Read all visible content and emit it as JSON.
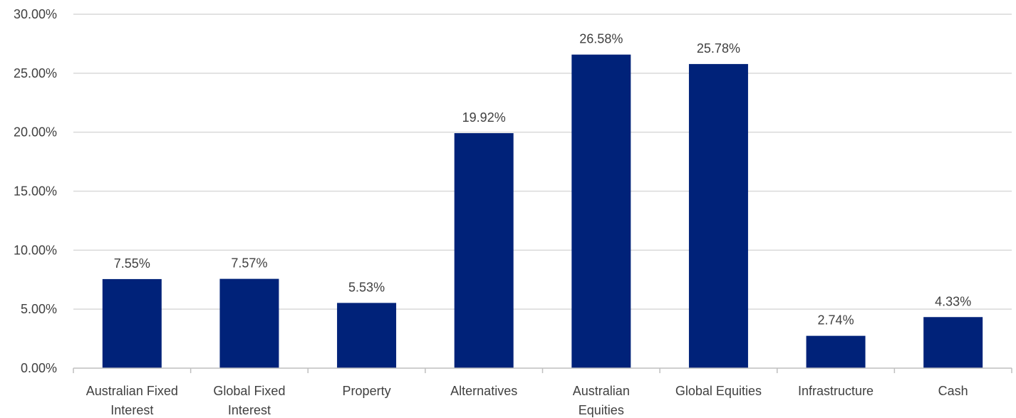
{
  "chart_data": {
    "type": "bar",
    "categories": [
      [
        "Australian Fixed",
        "Interest"
      ],
      [
        "Global Fixed",
        "Interest"
      ],
      [
        "Property"
      ],
      [
        "Alternatives"
      ],
      [
        "Australian",
        "Equities"
      ],
      [
        "Global Equities"
      ],
      [
        "Infrastructure"
      ],
      [
        "Cash"
      ]
    ],
    "values": [
      7.55,
      7.57,
      5.53,
      19.92,
      26.58,
      25.78,
      2.74,
      4.33
    ],
    "data_labels": [
      "7.55%",
      "7.57%",
      "5.53%",
      "19.92%",
      "26.58%",
      "25.78%",
      "2.74%",
      "4.33%"
    ],
    "yticks": [
      0,
      5,
      10,
      15,
      20,
      25,
      30
    ],
    "ytick_labels": [
      "0.00%",
      "5.00%",
      "10.00%",
      "15.00%",
      "20.00%",
      "25.00%",
      "30.00%"
    ],
    "ylim": [
      0,
      30
    ],
    "grid": true,
    "legend": "none",
    "bar_color": "#002279",
    "grid_color": "#d9d9d9",
    "text_color": "#404040"
  }
}
